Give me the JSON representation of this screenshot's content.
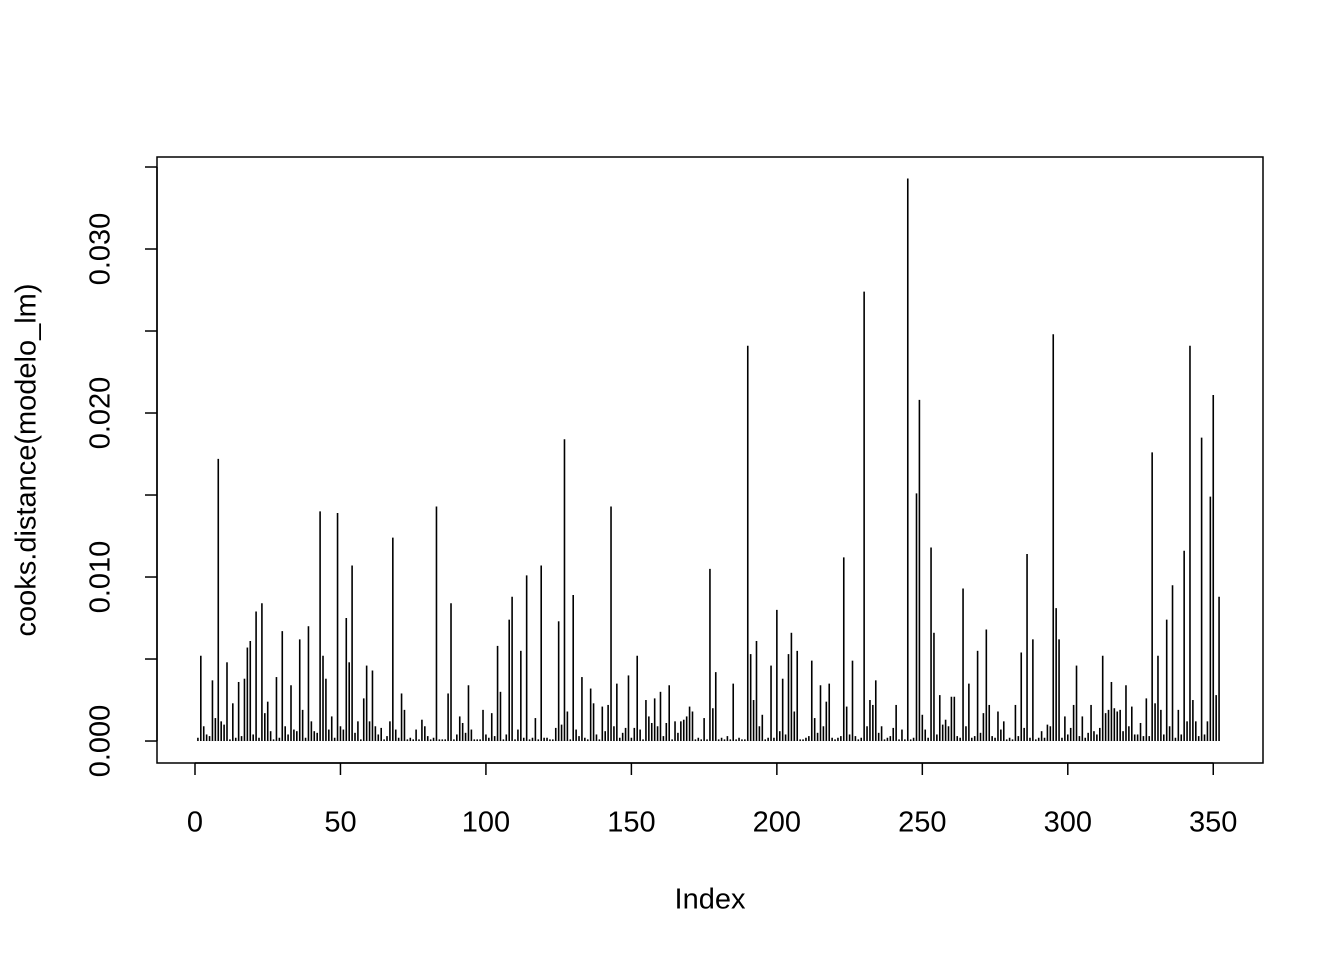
{
  "chart_data": {
    "type": "bar",
    "color": "#000000",
    "x_label": "Index",
    "y_label": "cooks.distance(modelo_lm)",
    "xlim": [
      -13.06,
      367.1
    ],
    "ylim": [
      -0.00134,
      0.03561
    ],
    "xticks": [
      0,
      50,
      100,
      150,
      200,
      250,
      300,
      350
    ],
    "yticks": [
      {
        "value": 0,
        "label": "0.000"
      },
      {
        "value": 0.005,
        "label": null
      },
      {
        "value": 0.01,
        "label": "0.010"
      },
      {
        "value": 0.015,
        "label": null
      },
      {
        "value": 0.02,
        "label": "0.020"
      },
      {
        "value": 0.025,
        "label": null
      },
      {
        "value": 0.03,
        "label": "0.030"
      },
      {
        "value": 0.035,
        "label": null
      }
    ],
    "grid": false,
    "x": [
      1,
      2,
      3,
      4,
      5,
      6,
      7,
      8,
      9,
      10,
      11,
      12,
      13,
      14,
      15,
      16,
      17,
      18,
      19,
      20,
      21,
      22,
      23,
      24,
      25,
      26,
      27,
      28,
      29,
      30,
      31,
      32,
      33,
      34,
      35,
      36,
      37,
      38,
      39,
      40,
      41,
      42,
      43,
      44,
      45,
      46,
      47,
      48,
      49,
      50,
      51,
      52,
      53,
      54,
      55,
      56,
      57,
      58,
      59,
      60,
      61,
      62,
      63,
      64,
      65,
      66,
      67,
      68,
      69,
      70,
      71,
      72,
      73,
      74,
      75,
      76,
      77,
      78,
      79,
      80,
      81,
      82,
      83,
      84,
      85,
      86,
      87,
      88,
      89,
      90,
      91,
      92,
      93,
      94,
      95,
      96,
      97,
      98,
      99,
      100,
      101,
      102,
      103,
      104,
      105,
      106,
      107,
      108,
      109,
      110,
      111,
      112,
      113,
      114,
      115,
      116,
      117,
      118,
      119,
      120,
      121,
      122,
      123,
      124,
      125,
      126,
      127,
      128,
      129,
      130,
      131,
      132,
      133,
      134,
      135,
      136,
      137,
      138,
      139,
      140,
      141,
      142,
      143,
      144,
      145,
      146,
      147,
      148,
      149,
      150,
      151,
      152,
      153,
      154,
      155,
      156,
      157,
      158,
      159,
      160,
      161,
      162,
      163,
      164,
      165,
      166,
      167,
      168,
      169,
      170,
      171,
      172,
      173,
      174,
      175,
      176,
      177,
      178,
      179,
      180,
      181,
      182,
      183,
      184,
      185,
      186,
      187,
      188,
      189,
      190,
      191,
      192,
      193,
      194,
      195,
      196,
      197,
      198,
      199,
      200,
      201,
      202,
      203,
      204,
      205,
      206,
      207,
      208,
      209,
      210,
      211,
      212,
      213,
      214,
      215,
      216,
      217,
      218,
      219,
      220,
      221,
      222,
      223,
      224,
      225,
      226,
      227,
      228,
      229,
      230,
      231,
      232,
      233,
      234,
      235,
      236,
      237,
      238,
      239,
      240,
      241,
      242,
      243,
      244,
      245,
      246,
      247,
      248,
      249,
      250,
      251,
      252,
      253,
      254,
      255,
      256,
      257,
      258,
      259,
      260,
      261,
      262,
      263,
      264,
      265,
      266,
      267,
      268,
      269,
      270,
      271,
      272,
      273,
      274,
      275,
      276,
      277,
      278,
      279,
      280,
      281,
      282,
      283,
      284,
      285,
      286,
      287,
      288,
      289,
      290,
      291,
      292,
      293,
      294,
      295,
      296,
      297,
      298,
      299,
      300,
      301,
      302,
      303,
      304,
      305,
      306,
      307,
      308,
      309,
      310,
      311,
      312,
      313,
      314,
      315,
      316,
      317,
      318,
      319,
      320,
      321,
      322,
      323,
      324,
      325,
      326,
      327,
      328,
      329,
      330,
      331,
      332,
      333,
      334,
      335,
      336,
      337,
      338,
      339,
      340,
      341,
      342,
      343,
      344,
      345,
      346,
      347,
      348,
      349,
      350,
      351,
      352
    ],
    "values": [
      0.0002,
      0.0052,
      0.0009,
      0.0004,
      0.0003,
      0.0037,
      0.0014,
      0.0172,
      0.0012,
      0.001,
      0.0048,
      0.0001,
      0.0023,
      0.0002,
      0.0036,
      0.0003,
      0.0038,
      0.0057,
      0.0061,
      0.0004,
      0.0079,
      0.0002,
      0.0084,
      0.0017,
      0.0024,
      0.0006,
      0.0001,
      0.0039,
      0.0002,
      0.0067,
      0.0009,
      0.0004,
      0.0034,
      0.0007,
      0.0006,
      0.0062,
      0.0019,
      0.0002,
      0.007,
      0.0012,
      0.0006,
      0.0005,
      0.014,
      0.0052,
      0.0038,
      0.0007,
      0.0015,
      0.0002,
      0.0139,
      0.0009,
      0.0007,
      0.0075,
      0.0048,
      0.0107,
      0.0005,
      0.0012,
      0.0001,
      0.0026,
      0.0046,
      0.0012,
      0.0043,
      0.0009,
      0.0004,
      0.0008,
      0.0001,
      0.0003,
      0.0012,
      0.0124,
      0.0007,
      0.0002,
      0.0029,
      0.0019,
      0.0001,
      0.0002,
      0.0001,
      0.0007,
      0.0001,
      0.0013,
      0.0009,
      0.0003,
      0.0001,
      0.0002,
      0.0143,
      0.0001,
      0.0001,
      0.0001,
      0.0029,
      0.0084,
      0.0001,
      0.0004,
      0.0015,
      0.0011,
      0.0005,
      0.0034,
      0.0007,
      0.0001,
      0.0001,
      0.0001,
      0.0019,
      0.0004,
      0.0002,
      0.0017,
      0.0003,
      0.0058,
      0.003,
      0.0001,
      0.0004,
      0.0074,
      0.0088,
      0.0001,
      0.0007,
      0.0055,
      0.0002,
      0.0101,
      0.0001,
      0.0002,
      0.0014,
      0.0001,
      0.0107,
      0.0002,
      0.0002,
      0.0001,
      0.0001,
      0.0008,
      0.0073,
      0.001,
      0.0184,
      0.0018,
      0.0001,
      0.0089,
      0.0007,
      0.0003,
      0.0039,
      0.0002,
      0.0001,
      0.0032,
      0.0023,
      0.0004,
      0.0001,
      0.0021,
      0.0006,
      0.0022,
      0.0143,
      0.0009,
      0.0035,
      0.0002,
      0.0005,
      0.0008,
      0.004,
      0.0002,
      0.0008,
      0.0052,
      0.0007,
      0.0001,
      0.0025,
      0.0015,
      0.0011,
      0.0026,
      0.0009,
      0.003,
      0.0003,
      0.0011,
      0.0034,
      0.0001,
      0.0012,
      0.0005,
      0.0012,
      0.0013,
      0.0015,
      0.0021,
      0.0018,
      0.0001,
      0.0002,
      0.0001,
      0.0014,
      0.0001,
      0.0105,
      0.002,
      0.0042,
      0.0001,
      0.0002,
      0.0001,
      0.0003,
      0.0001,
      0.0035,
      0.0001,
      0.0002,
      0.0001,
      0.0001,
      0.0241,
      0.0053,
      0.0025,
      0.0061,
      0.0009,
      0.0016,
      0.0001,
      0.0002,
      0.0046,
      0.0002,
      0.008,
      0.0006,
      0.0038,
      0.0004,
      0.0053,
      0.0066,
      0.0018,
      0.0055,
      0.0001,
      0.0001,
      0.0002,
      0.0003,
      0.0049,
      0.0014,
      0.0005,
      0.0034,
      0.0009,
      0.0024,
      0.0035,
      0.0002,
      0.0001,
      0.0002,
      0.0003,
      0.0112,
      0.0021,
      0.0004,
      0.0049,
      0.0003,
      0.0001,
      0.0002,
      0.0274,
      0.0009,
      0.0025,
      0.0022,
      0.0037,
      0.0005,
      0.0009,
      0.0001,
      0.0002,
      0.0003,
      0.0008,
      0.0022,
      0.0001,
      0.0007,
      0.0001,
      0.0343,
      0.0001,
      0.0002,
      0.0151,
      0.0208,
      0.0016,
      0.0007,
      0.0002,
      0.0118,
      0.0066,
      0.0004,
      0.0028,
      0.001,
      0.0013,
      0.0009,
      0.0027,
      0.0027,
      0.0003,
      0.0002,
      0.0093,
      0.0009,
      0.0035,
      0.0002,
      0.0003,
      0.0055,
      0.0005,
      0.0017,
      0.0068,
      0.0022,
      0.0003,
      0.0002,
      0.0018,
      0.0007,
      0.0012,
      0.0001,
      0.0002,
      0.0001,
      0.0022,
      0.0003,
      0.0054,
      0.0008,
      0.0114,
      0.0002,
      0.0062,
      0.0001,
      0.0002,
      0.0006,
      0.0002,
      0.001,
      0.0009,
      0.0248,
      0.0081,
      0.0062,
      0.0002,
      0.0015,
      0.0004,
      0.0008,
      0.0022,
      0.0046,
      0.0003,
      0.0015,
      0.0002,
      0.0005,
      0.0022,
      0.0006,
      0.0004,
      0.0008,
      0.0052,
      0.0017,
      0.0019,
      0.0036,
      0.002,
      0.0018,
      0.0019,
      0.0006,
      0.0034,
      0.0009,
      0.0021,
      0.0004,
      0.0004,
      0.0011,
      0.0003,
      0.0026,
      0.0003,
      0.0176,
      0.0023,
      0.0052,
      0.0019,
      0.0004,
      0.0074,
      0.0009,
      0.0095,
      0.0002,
      0.0019,
      0.0004,
      0.0116,
      0.0012,
      0.0241,
      0.0025,
      0.0012,
      0.0003,
      0.0185,
      0.0004,
      0.0012,
      0.0149,
      0.0211,
      0.0028,
      0.0088
    ]
  }
}
